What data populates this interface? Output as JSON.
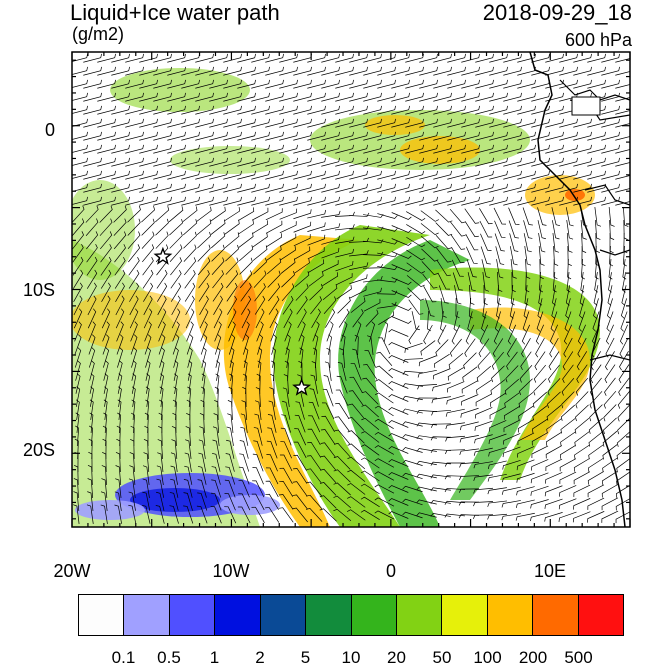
{
  "header": {
    "title": "Liquid+Ice water path",
    "units": "(g/m2)",
    "datetime": "2018-09-29_18",
    "level": "600 hPa"
  },
  "axes": {
    "lat_labels": [
      "0",
      "10S",
      "20S"
    ],
    "lon_labels": [
      "20W",
      "10W",
      "0",
      "10E"
    ],
    "lon_range": [
      -20,
      15
    ],
    "lat_range": [
      -24.5,
      4.5
    ]
  },
  "markers": [
    {
      "name": "star-marker-1",
      "lon": -14.3,
      "lat": -8.0
    },
    {
      "name": "star-marker-2",
      "lon": -5.6,
      "lat": -16.0
    }
  ],
  "colorbar": {
    "colors": [
      "#fdfdfd",
      "#a0a0ff",
      "#5050ff",
      "#0010e0",
      "#0a4a96",
      "#128c3c",
      "#34b41c",
      "#82d214",
      "#e6f00a",
      "#ffbe00",
      "#ff6a00",
      "#ff1010"
    ],
    "labels": [
      "0.1",
      "0.5",
      "1",
      "2",
      "5",
      "10",
      "20",
      "50",
      "100",
      "200",
      "500"
    ]
  }
}
